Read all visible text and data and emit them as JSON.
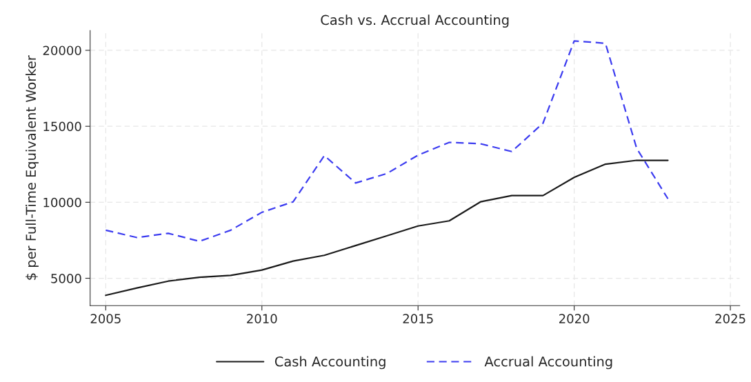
{
  "chart_data": {
    "type": "line",
    "title": "Cash vs. Accrual Accounting",
    "ylabel": "$ per Full-Time Equivalent Worker",
    "x": [
      2005,
      2006,
      2007,
      2008,
      2009,
      2010,
      2011,
      2012,
      2013,
      2014,
      2015,
      2016,
      2017,
      2018,
      2019,
      2020,
      2021,
      2022,
      2023
    ],
    "series": [
      {
        "name": "Cash Accounting",
        "color": "#1a1a1a",
        "line_style": "solid",
        "values": [
          3880,
          4360,
          4810,
          5060,
          5190,
          5540,
          6130,
          6510,
          7150,
          7790,
          8440,
          8780,
          10030,
          10440,
          10440,
          11640,
          12510,
          12760,
          12760
        ]
      },
      {
        "name": "Accrual Accounting",
        "color": "#3c3cf0",
        "line_style": "dashed",
        "values": [
          8160,
          7680,
          7960,
          7430,
          8160,
          9340,
          10030,
          13070,
          11270,
          11890,
          13100,
          13940,
          13850,
          13340,
          15200,
          20620,
          20460,
          13550,
          10230
        ]
      }
    ],
    "xlim": [
      2004.5,
      2025.3
    ],
    "xticks": [
      2005,
      2010,
      2015,
      2020,
      2025
    ],
    "ylim": [
      3200,
      21300
    ],
    "yticks": [
      5000,
      10000,
      15000,
      20000
    ],
    "grid": true,
    "legend": "bottom",
    "marker": "none"
  }
}
